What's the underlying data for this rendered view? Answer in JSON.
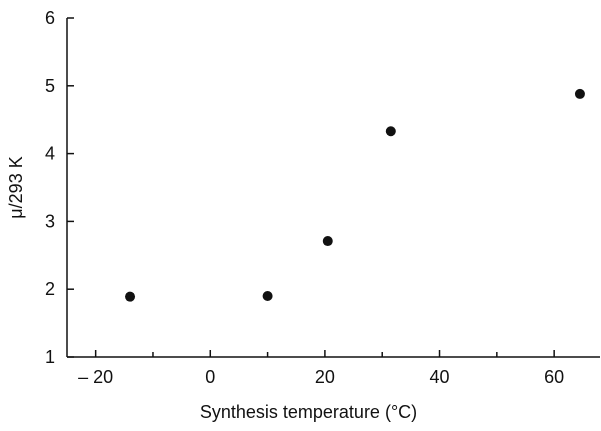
{
  "chart_data": {
    "type": "scatter",
    "title": "",
    "xlabel": "Synthesis temperature (°C)",
    "ylabel": "μ/293 K",
    "xlim": [
      -25,
      68
    ],
    "ylim": [
      1,
      6
    ],
    "x_ticks": [
      {
        "value": -20,
        "label": "– 20"
      },
      {
        "value": 0,
        "label": "0"
      },
      {
        "value": 20,
        "label": "20"
      },
      {
        "value": 40,
        "label": "40"
      },
      {
        "value": 60,
        "label": "60"
      }
    ],
    "x_minor_ticks": [
      -10,
      10,
      30,
      50
    ],
    "y_ticks": [
      {
        "value": 1,
        "label": "1"
      },
      {
        "value": 2,
        "label": "2"
      },
      {
        "value": 3,
        "label": "3"
      },
      {
        "value": 4,
        "label": "4"
      },
      {
        "value": 5,
        "label": "5"
      },
      {
        "value": 6,
        "label": "6"
      }
    ],
    "grid": false,
    "marker_color": "#111111",
    "points": [
      {
        "x": -14,
        "y": 1.89
      },
      {
        "x": 10,
        "y": 1.9
      },
      {
        "x": 20.5,
        "y": 2.71
      },
      {
        "x": 31.5,
        "y": 4.33
      },
      {
        "x": 64.5,
        "y": 4.88
      }
    ]
  }
}
